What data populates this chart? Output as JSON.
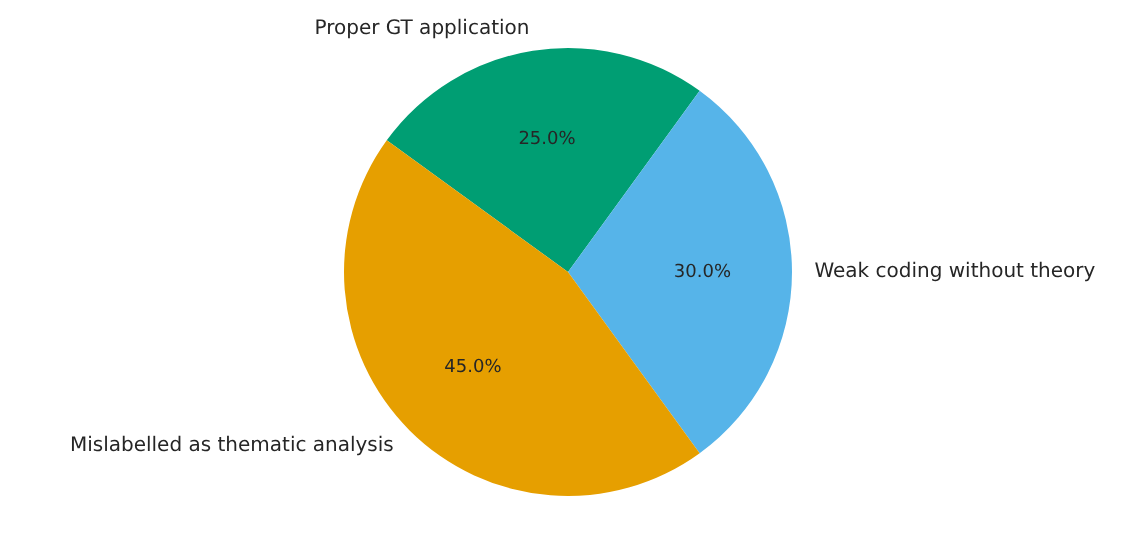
{
  "chart_data": {
    "type": "pie",
    "categories": [
      "Proper GT application",
      "Weak coding without theory",
      "Mislabelled as thematic analysis"
    ],
    "values": [
      25,
      30,
      45
    ],
    "colors": [
      "#009e73",
      "#56b4e9",
      "#e69f00"
    ],
    "value_labels": [
      "25.0%",
      "30.0%",
      "45.0%"
    ],
    "legend": false
  }
}
